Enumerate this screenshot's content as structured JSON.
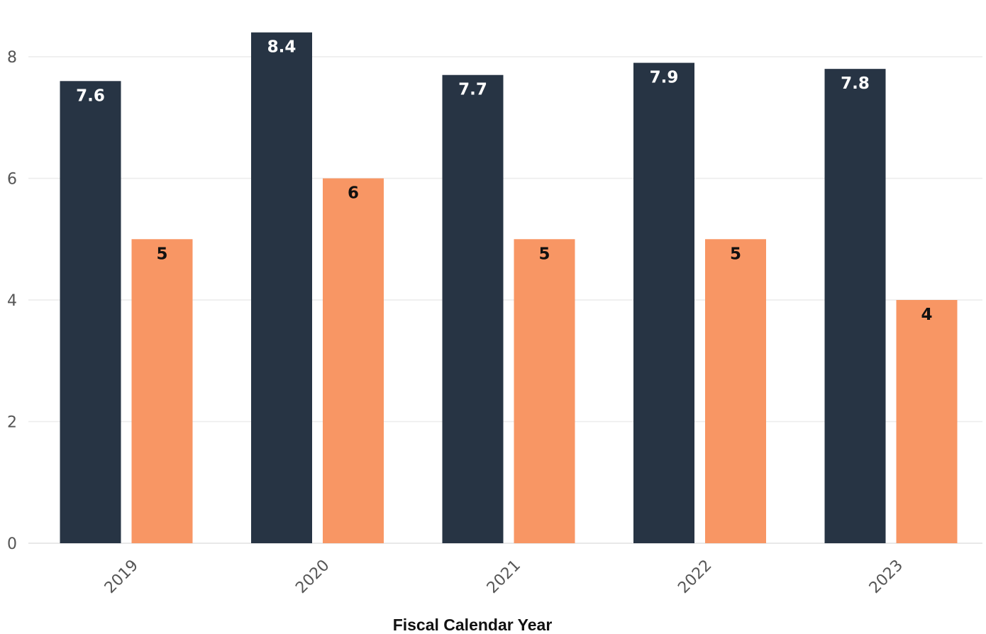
{
  "chart_data": {
    "type": "bar",
    "categories": [
      "2019",
      "2020",
      "2021",
      "2022",
      "2023"
    ],
    "series": [
      {
        "values": [
          7.6,
          8.4,
          7.7,
          7.9,
          7.8
        ],
        "color": "#273444",
        "label_color": "#ffffff"
      },
      {
        "values": [
          5,
          6,
          5,
          5,
          4
        ],
        "color": "#F89664",
        "label_color": "#111111"
      }
    ],
    "xlabel": "Fiscal Calendar Year",
    "ylabel": "",
    "ylim": [
      0,
      9
    ],
    "yticks": [
      0,
      2,
      4,
      6,
      8
    ],
    "grid": true,
    "data_labels": true,
    "legend": "none"
  }
}
